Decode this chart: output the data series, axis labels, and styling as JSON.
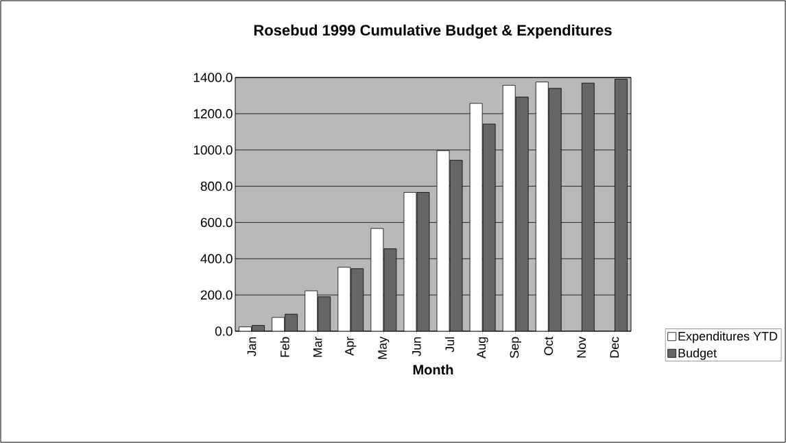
{
  "chart_data": {
    "type": "bar",
    "title": "Rosebud 1999 Cumulative Budget & Expenditures",
    "xlabel": "Month",
    "categories": [
      "Jan",
      "Feb",
      "Mar",
      "Apr",
      "May",
      "Jun",
      "Jul",
      "Aug",
      "Sep",
      "Oct",
      "Nov",
      "Dec"
    ],
    "series": [
      {
        "name": "Expenditures YTD",
        "color": "#ffffff",
        "values": [
          24,
          76,
          223,
          353,
          567,
          766,
          996,
          1257,
          1357,
          1375,
          null,
          null
        ]
      },
      {
        "name": "Budget",
        "color": "#666666",
        "values": [
          32,
          94,
          190,
          345,
          455,
          766,
          943,
          1143,
          1292,
          1340,
          1369,
          1391
        ]
      }
    ],
    "ylim": [
      0,
      1400
    ],
    "yticks": [
      {
        "value": 0,
        "label": "0.0"
      },
      {
        "value": 200,
        "label": "200.0"
      },
      {
        "value": 400,
        "label": "400.0"
      },
      {
        "value": 600,
        "label": "600.0"
      },
      {
        "value": 800,
        "label": "800.0"
      },
      {
        "value": 1000,
        "label": "1000.0"
      },
      {
        "value": 1200,
        "label": "1200.0"
      },
      {
        "value": 1400,
        "label": "1400.0"
      }
    ],
    "grid": "y",
    "legend": "bottom right"
  }
}
